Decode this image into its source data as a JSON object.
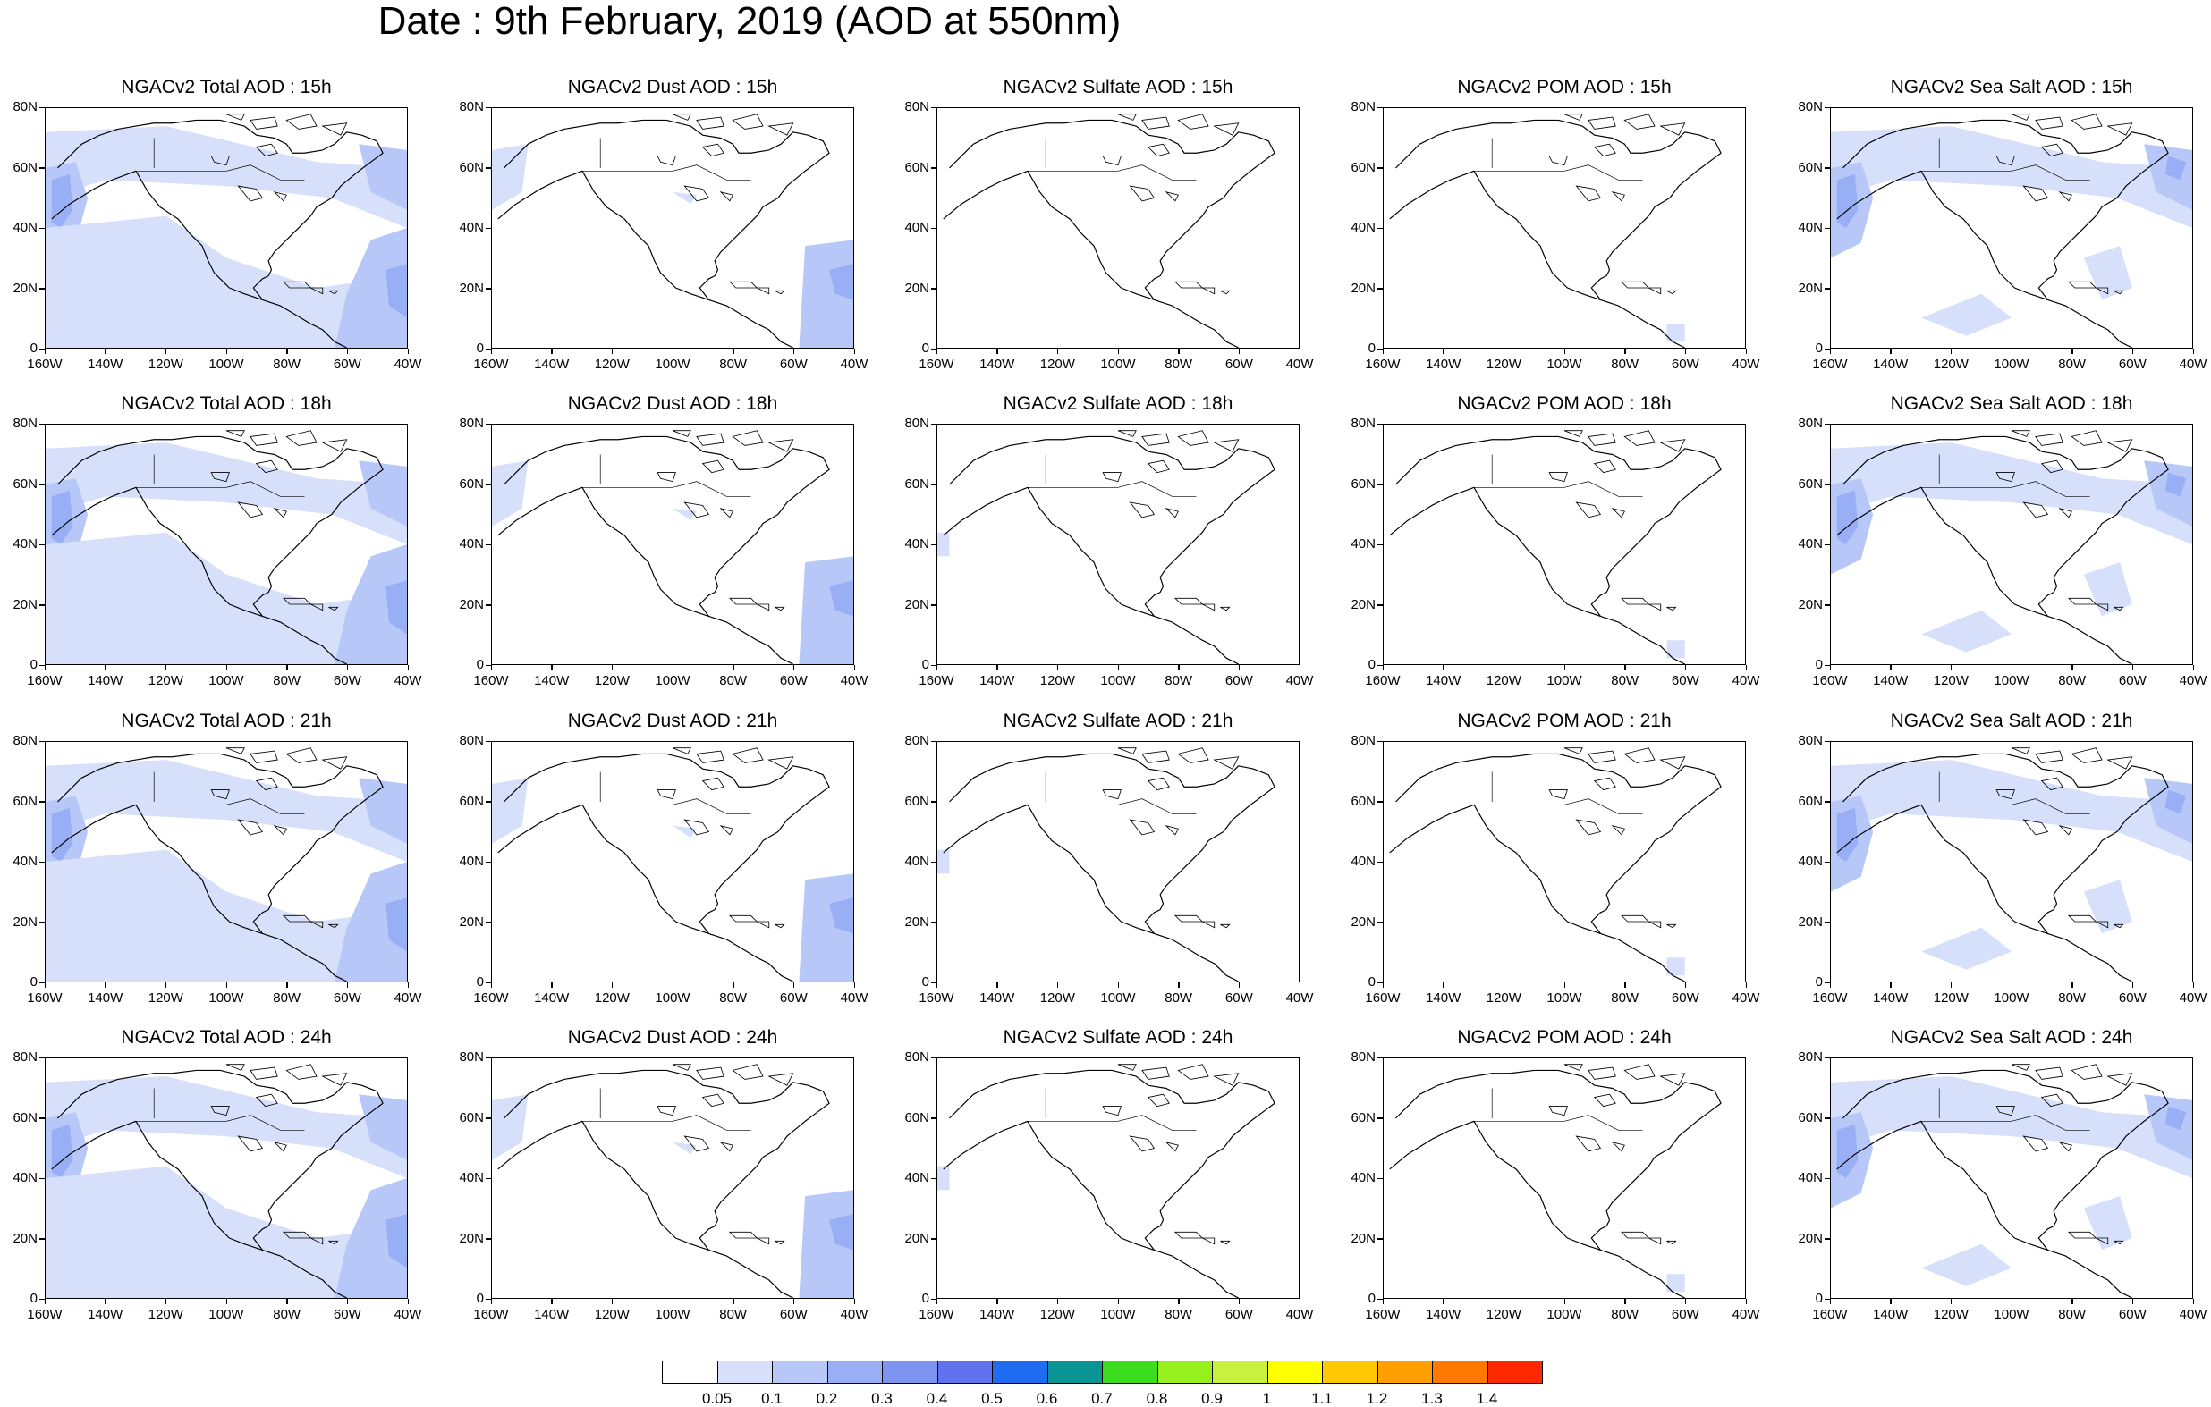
{
  "title": "Date : 9th February, 2019 (AOD at 550nm)",
  "map": {
    "lon_ticks": [
      "160W",
      "140W",
      "120W",
      "100W",
      "80W",
      "60W",
      "40W"
    ],
    "lat_ticks": [
      "80N",
      "60N",
      "40N",
      "20N",
      "0"
    ]
  },
  "rows": [
    {
      "panels": [
        {
          "title": "NGACv2 Total AOD : 15h",
          "species": "total"
        },
        {
          "title": "NGACv2 Dust AOD : 15h",
          "species": "dust"
        },
        {
          "title": "NGACv2 Sulfate AOD : 15h",
          "species": "sulfate"
        },
        {
          "title": "NGACv2 POM AOD : 15h",
          "species": "pom"
        },
        {
          "title": "NGACv2 Sea Salt AOD : 15h",
          "species": "seasalt"
        }
      ]
    },
    {
      "panels": [
        {
          "title": "NGACv2 Total AOD : 18h",
          "species": "total"
        },
        {
          "title": "NGACv2 Dust AOD : 18h",
          "species": "dust"
        },
        {
          "title": "NGACv2 Sulfate AOD : 18h",
          "species": "sulfate"
        },
        {
          "title": "NGACv2 POM AOD : 18h",
          "species": "pom"
        },
        {
          "title": "NGACv2 Sea Salt AOD : 18h",
          "species": "seasalt"
        }
      ]
    },
    {
      "panels": [
        {
          "title": "NGACv2 Total AOD : 21h",
          "species": "total"
        },
        {
          "title": "NGACv2 Dust AOD : 21h",
          "species": "dust"
        },
        {
          "title": "NGACv2 Sulfate AOD : 21h",
          "species": "sulfate"
        },
        {
          "title": "NGACv2 POM AOD : 21h",
          "species": "pom"
        },
        {
          "title": "NGACv2 Sea Salt AOD : 21h",
          "species": "seasalt"
        }
      ]
    },
    {
      "panels": [
        {
          "title": "NGACv2 Total AOD : 24h",
          "species": "total"
        },
        {
          "title": "NGACv2 Dust AOD : 24h",
          "species": "dust"
        },
        {
          "title": "NGACv2 Sulfate AOD : 24h",
          "species": "sulfate"
        },
        {
          "title": "NGACv2 POM AOD : 24h",
          "species": "pom"
        },
        {
          "title": "NGACv2 Sea Salt  AOD : 24h",
          "species": "seasalt"
        }
      ]
    }
  ],
  "colorbar": {
    "labels": [
      "0.05",
      "0.1",
      "0.2",
      "0.3",
      "0.4",
      "0.5",
      "0.6",
      "0.7",
      "0.8",
      "0.9",
      "1",
      "1.1",
      "1.2",
      "1.3",
      "1.4"
    ],
    "colors": [
      "#ffffff",
      "#d6e0fb",
      "#b7c8f8",
      "#98aff5",
      "#7d95f0",
      "#6172ef",
      "#1f6cf0",
      "#0b9494",
      "#3cdc1e",
      "#96f01e",
      "#c8f03c",
      "#ffff00",
      "#ffc800",
      "#ffa000",
      "#ff7800",
      "#ff2800"
    ]
  },
  "colors": {
    "land_outline": "#000000",
    "aod_faint": "#d6e0fb",
    "aod_light": "#b7c8f8",
    "aod_mid": "#98aff5",
    "aod_strong": "#7d95f0"
  }
}
